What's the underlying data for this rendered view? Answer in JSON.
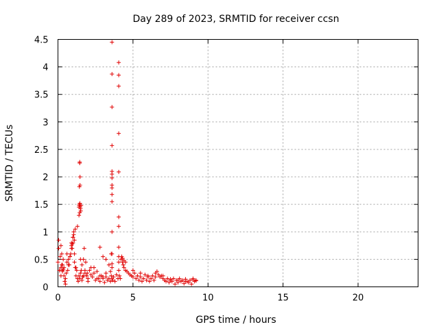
{
  "chart_data": {
    "type": "scatter",
    "title": "Day 289 of 2023, SRMTID for receiver ccsn",
    "xlabel": "GPS time / hours",
    "ylabel": "SRMTID / TECUs",
    "xlim": [
      0,
      24
    ],
    "ylim": [
      0,
      4.5
    ],
    "x_ticks": [
      0,
      5,
      10,
      15,
      20
    ],
    "x_tick_labels": [
      "0",
      "5",
      "10",
      "15",
      "20"
    ],
    "y_ticks": [
      0,
      0.5,
      1,
      1.5,
      2,
      2.5,
      3,
      3.5,
      4,
      4.5
    ],
    "y_tick_labels": [
      "0",
      "0.5",
      "1",
      "1.5",
      "2",
      "2.5",
      "3",
      "3.5",
      "4",
      "4.5"
    ],
    "grid": true,
    "marker": "+",
    "color": "#e00000",
    "series": [
      {
        "name": "SRMTID",
        "x": [
          0.0,
          0.05,
          0.1,
          0.15,
          0.2,
          0.25,
          0.3,
          0.35,
          0.4,
          0.45,
          0.5,
          0.55,
          0.6,
          0.65,
          0.7,
          0.75,
          0.8,
          0.85,
          0.9,
          0.95,
          1.0,
          1.05,
          1.1,
          1.15,
          1.2,
          1.25,
          1.3,
          1.35,
          1.4,
          1.45,
          1.5,
          1.55,
          1.6,
          1.65,
          1.7,
          1.75,
          1.8,
          1.85,
          1.9,
          1.95,
          2.0,
          2.1,
          2.2,
          2.3,
          2.4,
          2.5,
          2.6,
          2.7,
          2.8,
          2.9,
          3.0,
          3.1,
          3.2,
          3.3,
          3.4,
          3.5,
          3.55,
          3.6,
          3.65,
          3.7,
          3.8,
          3.9,
          4.0,
          4.05,
          4.1,
          4.15,
          4.2,
          4.25,
          4.3,
          4.35,
          4.4,
          4.5,
          4.6,
          4.7,
          4.8,
          4.9,
          5.0,
          5.1,
          5.2,
          5.3,
          5.4,
          5.5,
          5.6,
          5.7,
          5.8,
          5.9,
          6.0,
          6.1,
          6.2,
          6.3,
          6.4,
          6.5,
          6.6,
          6.7,
          6.8,
          6.9,
          7.0,
          7.1,
          7.2,
          7.3,
          7.4,
          7.5,
          7.6,
          7.7,
          7.8,
          7.9,
          8.0,
          8.1,
          8.2,
          8.3,
          8.4,
          8.5,
          8.6,
          8.7,
          8.8,
          8.9,
          9.0,
          9.1,
          9.2,
          0.05,
          0.1,
          0.2,
          0.3,
          0.4,
          0.5,
          0.6,
          0.7,
          0.8,
          0.9,
          1.0,
          1.1,
          1.2,
          1.3,
          1.4,
          1.45,
          1.5,
          1.6,
          1.7,
          1.8,
          1.9,
          2.0,
          2.2,
          2.4,
          2.6,
          2.8,
          3.0,
          3.2,
          3.4,
          3.5,
          3.55,
          3.6,
          3.6,
          3.6,
          3.6,
          3.6,
          3.6,
          3.6,
          3.6,
          3.6,
          3.6,
          3.6,
          3.6,
          3.6,
          3.6,
          3.6,
          4.05,
          4.05,
          4.05,
          4.05,
          4.05,
          4.05,
          4.05,
          4.05,
          4.05,
          4.05,
          1.4,
          1.42,
          1.44,
          1.46,
          1.48,
          1.5,
          1.52,
          1.54,
          1.45,
          1.45,
          1.47,
          1.47,
          1.43,
          1.0,
          1.05,
          1.1,
          1.15,
          0.9,
          0.95,
          0.2,
          0.25,
          0.3,
          0.35,
          2.8,
          3.0,
          3.2,
          4.3,
          4.4,
          4.5,
          5.0,
          5.5,
          6.0,
          6.5,
          7.0,
          7.5,
          8.0,
          8.5,
          9.0,
          9.2
        ],
        "y": [
          0.45,
          0.7,
          0.3,
          0.55,
          0.75,
          0.6,
          0.3,
          0.5,
          0.2,
          0.1,
          0.05,
          0.25,
          0.45,
          0.3,
          0.5,
          0.4,
          0.55,
          0.6,
          0.8,
          0.7,
          0.9,
          1.0,
          0.6,
          0.35,
          0.2,
          0.3,
          0.15,
          0.1,
          0.2,
          0.15,
          0.25,
          0.3,
          0.12,
          0.18,
          0.5,
          0.7,
          0.3,
          0.45,
          0.2,
          0.25,
          0.15,
          0.3,
          0.22,
          0.18,
          0.35,
          0.12,
          0.28,
          0.15,
          0.1,
          0.2,
          0.18,
          0.08,
          0.25,
          0.12,
          0.15,
          0.1,
          0.2,
          0.15,
          0.12,
          0.18,
          0.1,
          0.22,
          0.15,
          0.3,
          0.2,
          0.15,
          0.5,
          0.55,
          0.45,
          0.4,
          0.35,
          0.3,
          0.28,
          0.25,
          0.22,
          0.2,
          0.18,
          0.25,
          0.15,
          0.2,
          0.12,
          0.18,
          0.1,
          0.15,
          0.22,
          0.12,
          0.18,
          0.1,
          0.15,
          0.2,
          0.12,
          0.25,
          0.28,
          0.22,
          0.18,
          0.2,
          0.15,
          0.12,
          0.1,
          0.15,
          0.08,
          0.12,
          0.1,
          0.15,
          0.05,
          0.12,
          0.08,
          0.15,
          0.1,
          0.12,
          0.06,
          0.14,
          0.1,
          0.08,
          0.12,
          0.05,
          0.15,
          0.1,
          0.12,
          0.85,
          0.3,
          0.2,
          0.4,
          0.35,
          0.15,
          0.6,
          0.4,
          0.55,
          0.7,
          0.8,
          0.45,
          0.35,
          1.1,
          1.3,
          1.35,
          0.5,
          0.4,
          0.2,
          0.25,
          0.2,
          0.1,
          0.35,
          0.25,
          0.15,
          0.72,
          0.55,
          0.5,
          0.4,
          0.28,
          0.6,
          4.45,
          3.87,
          3.27,
          2.57,
          2.1,
          2.05,
          1.98,
          1.85,
          1.8,
          1.68,
          1.55,
          1.0,
          0.6,
          0.42,
          0.35,
          4.08,
          3.85,
          3.65,
          2.79,
          2.09,
          1.27,
          1.1,
          0.72,
          0.55,
          0.45,
          1.45,
          1.48,
          1.5,
          1.52,
          1.45,
          1.42,
          1.38,
          1.48,
          2.27,
          2.25,
          2.0,
          1.85,
          1.82,
          0.9,
          0.95,
          0.85,
          1.05,
          0.75,
          0.78,
          0.35,
          0.4,
          0.28,
          0.32,
          0.2,
          0.15,
          0.18,
          0.52,
          0.48,
          0.45,
          0.3,
          0.25,
          0.2,
          0.18,
          0.2,
          0.14,
          0.12,
          0.1,
          0.13,
          0.11
        ]
      }
    ]
  }
}
